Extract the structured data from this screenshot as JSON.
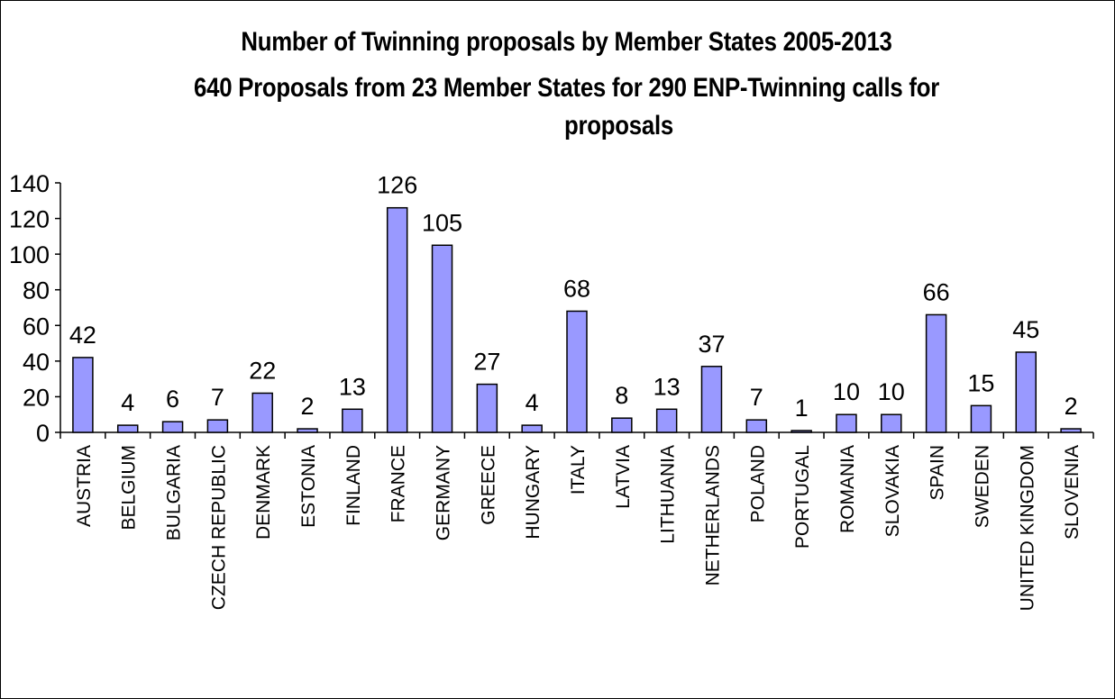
{
  "chart_data": {
    "type": "bar",
    "title": [
      "Number of Twinning proposals by Member States 2005-2013",
      "640 Proposals from 23 Member States for 290 ENP-Twinning calls for",
      "proposals"
    ],
    "categories": [
      "AUSTRIA",
      "BELGIUM",
      "BULGARIA",
      "CZECH REPUBLIC",
      "DENMARK",
      "ESTONIA",
      "FINLAND",
      "FRANCE",
      "GERMANY",
      "GREECE",
      "HUNGARY",
      "ITALY",
      "LATVIA",
      "LITHUANIA",
      "NETHERLANDS",
      "POLAND",
      "PORTUGAL",
      "ROMANIA",
      "SLOVAKIA",
      "SPAIN",
      "SWEDEN",
      "UNITED KINGDOM",
      "SLOVENIA"
    ],
    "values": [
      42,
      4,
      6,
      7,
      22,
      2,
      13,
      126,
      105,
      27,
      4,
      68,
      8,
      13,
      37,
      7,
      1,
      10,
      10,
      66,
      15,
      45,
      2
    ],
    "data_labels": [
      "42",
      "4",
      "6",
      "7",
      "22",
      "2",
      "13",
      "126",
      "105",
      "27",
      "4",
      "68",
      "8",
      "13",
      "37",
      "7",
      "1",
      "10",
      "10",
      "66",
      "15",
      "45",
      "2"
    ],
    "y_ticks": [
      "0",
      "20",
      "40",
      "60",
      "80",
      "100",
      "120",
      "140"
    ],
    "ylim": [
      0,
      140
    ],
    "xlabel": "",
    "ylabel": "",
    "grid": false,
    "legend": "none",
    "bar_color": "#9999ff",
    "bar_edge_color": "#000000"
  }
}
